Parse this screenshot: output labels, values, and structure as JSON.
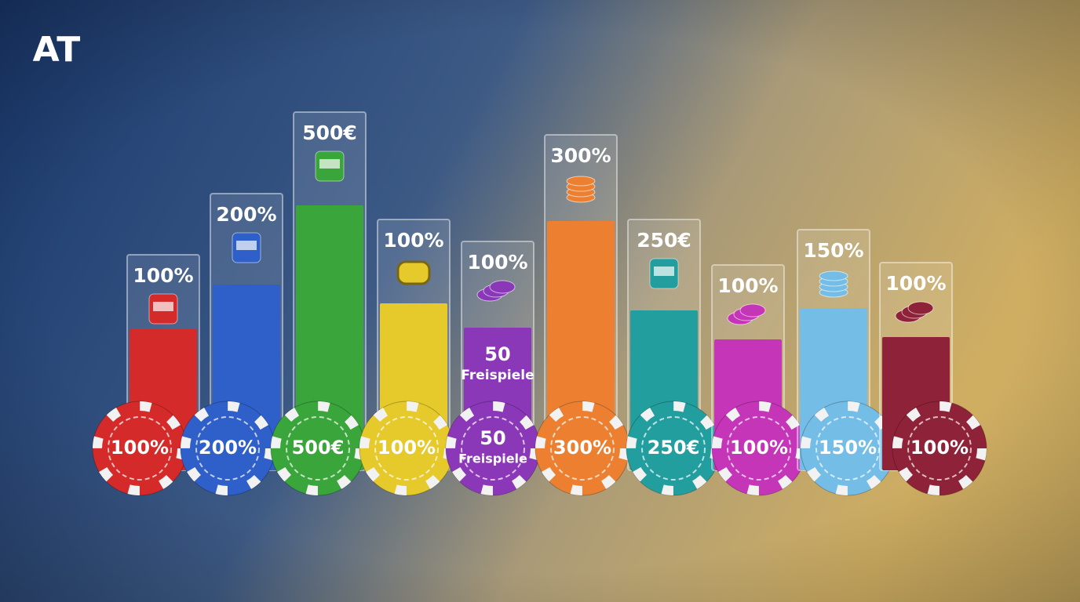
{
  "title": "AT",
  "items": [
    {
      "top": "100%",
      "chip": [
        "100%"
      ]
    },
    {
      "top": "200%",
      "chip": [
        "200%"
      ]
    },
    {
      "top": "500€",
      "chip": [
        "500€"
      ]
    },
    {
      "top": "100%",
      "chip": [
        "100%"
      ]
    },
    {
      "top": "100%",
      "bar": [
        "50",
        "Freispiele"
      ],
      "chip": [
        "50",
        "Freispiele"
      ]
    },
    {
      "top": "300%",
      "chip": [
        "300%"
      ]
    },
    {
      "top": "250€",
      "chip": [
        "250€"
      ]
    },
    {
      "top": "100%",
      "chip": [
        "100%"
      ]
    },
    {
      "top": "150%",
      "chip": [
        "150%"
      ]
    },
    {
      "top": "100%",
      "chip": [
        "100%"
      ]
    }
  ]
}
